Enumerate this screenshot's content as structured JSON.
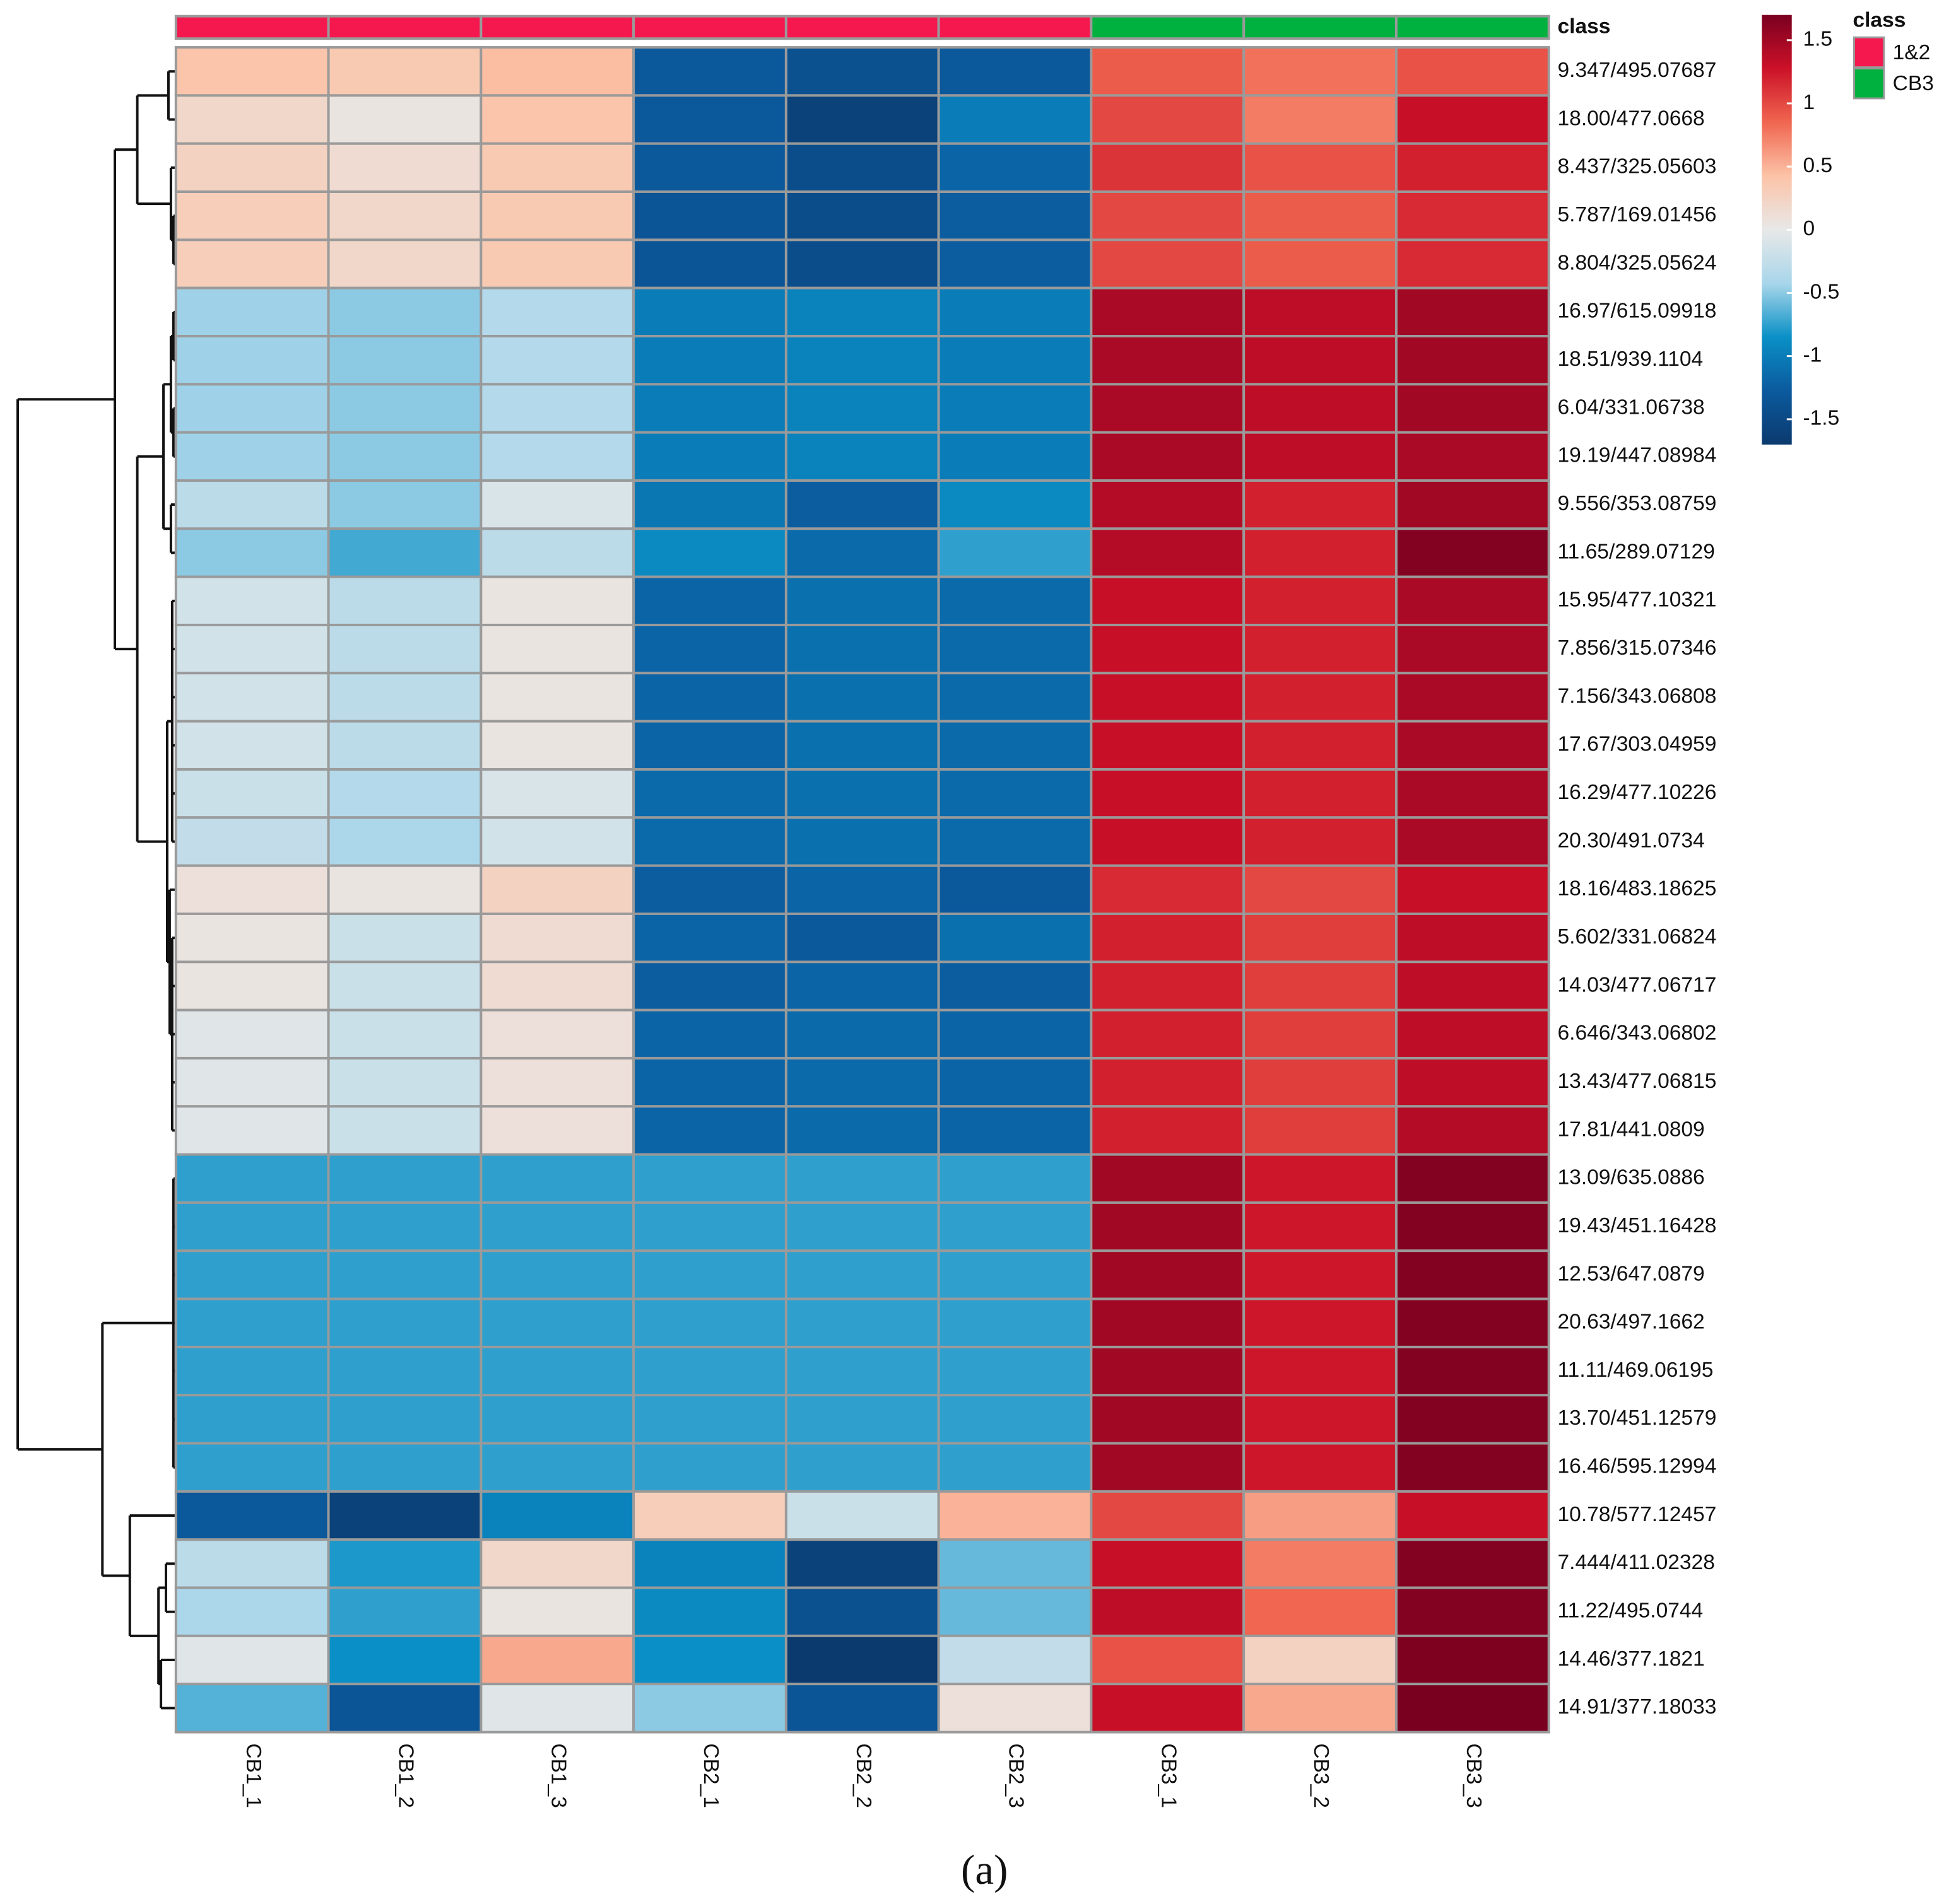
{
  "chart_data": {
    "type": "heatmap",
    "caption": "(a)",
    "class_label": "class",
    "classes": [
      {
        "name": "1&2",
        "color": "#f5184f"
      },
      {
        "name": "CB3",
        "color": "#00b140"
      }
    ],
    "column_classes": [
      "1&2",
      "1&2",
      "1&2",
      "1&2",
      "1&2",
      "1&2",
      "CB3",
      "CB3",
      "CB3"
    ],
    "columns": [
      "CB1_1",
      "CB1_2",
      "CB1_3",
      "CB2_1",
      "CB2_2",
      "CB2_3",
      "CB3_1",
      "CB3_2",
      "CB3_3"
    ],
    "rows": [
      "9.347/495.07687",
      "18.00/477.0668",
      "8.437/325.05603",
      "5.787/169.01456",
      "8.804/325.05624",
      "16.97/615.09918",
      "18.51/939.1104",
      "6.04/331.06738",
      "19.19/447.08984",
      "9.556/353.08759",
      "11.65/289.07129",
      "15.95/477.10321",
      "7.856/315.07346",
      "7.156/343.06808",
      "17.67/303.04959",
      "16.29/477.10226",
      "20.30/491.0734",
      "18.16/483.18625",
      "5.602/331.06824",
      "14.03/477.06717",
      "6.646/343.06802",
      "13.43/477.06815",
      "17.81/441.0809",
      "13.09/635.0886",
      "19.43/451.16428",
      "12.53/647.0879",
      "20.63/497.1662",
      "11.11/469.06195",
      "13.70/451.12579",
      "16.46/595.12994",
      "10.78/577.12457",
      "7.444/411.02328",
      "11.22/495.0744",
      "14.46/377.1821",
      "14.91/377.18033"
    ],
    "values": [
      [
        0.4,
        0.35,
        0.45,
        -1.3,
        -1.4,
        -1.3,
        0.9,
        0.8,
        0.95
      ],
      [
        0.2,
        0.05,
        0.4,
        -1.3,
        -1.6,
        -1.0,
        1.0,
        0.75,
        1.3
      ],
      [
        0.25,
        0.15,
        0.35,
        -1.3,
        -1.45,
        -1.2,
        1.1,
        0.95,
        1.2
      ],
      [
        0.3,
        0.2,
        0.35,
        -1.35,
        -1.45,
        -1.25,
        1.0,
        0.9,
        1.15
      ],
      [
        0.3,
        0.2,
        0.35,
        -1.35,
        -1.45,
        -1.25,
        1.0,
        0.9,
        1.15
      ],
      [
        -0.45,
        -0.5,
        -0.35,
        -1.0,
        -0.95,
        -1.0,
        1.45,
        1.35,
        1.5
      ],
      [
        -0.45,
        -0.5,
        -0.35,
        -1.0,
        -0.95,
        -1.0,
        1.45,
        1.35,
        1.5
      ],
      [
        -0.45,
        -0.5,
        -0.35,
        -1.0,
        -0.95,
        -1.0,
        1.45,
        1.35,
        1.5
      ],
      [
        -0.45,
        -0.5,
        -0.35,
        -1.0,
        -0.95,
        -1.0,
        1.45,
        1.35,
        1.45
      ],
      [
        -0.3,
        -0.5,
        -0.1,
        -1.05,
        -1.25,
        -0.9,
        1.4,
        1.2,
        1.5
      ],
      [
        -0.5,
        -0.7,
        -0.3,
        -0.9,
        -1.15,
        -0.75,
        1.4,
        1.2,
        1.65
      ],
      [
        -0.15,
        -0.3,
        0.05,
        -1.2,
        -1.1,
        -1.15,
        1.3,
        1.2,
        1.45
      ],
      [
        -0.15,
        -0.3,
        0.05,
        -1.2,
        -1.1,
        -1.15,
        1.3,
        1.2,
        1.45
      ],
      [
        -0.15,
        -0.3,
        0.05,
        -1.2,
        -1.1,
        -1.15,
        1.3,
        1.2,
        1.45
      ],
      [
        -0.15,
        -0.3,
        0.05,
        -1.2,
        -1.1,
        -1.15,
        1.3,
        1.2,
        1.45
      ],
      [
        -0.2,
        -0.35,
        -0.1,
        -1.15,
        -1.1,
        -1.15,
        1.3,
        1.2,
        1.45
      ],
      [
        -0.25,
        -0.4,
        -0.15,
        -1.15,
        -1.1,
        -1.15,
        1.3,
        1.2,
        1.45
      ],
      [
        0.1,
        0.05,
        0.25,
        -1.25,
        -1.2,
        -1.3,
        1.15,
        1.0,
        1.3
      ],
      [
        0.05,
        -0.2,
        0.15,
        -1.2,
        -1.3,
        -1.1,
        1.2,
        1.05,
        1.35
      ],
      [
        0.05,
        -0.2,
        0.15,
        -1.25,
        -1.2,
        -1.25,
        1.2,
        1.05,
        1.35
      ],
      [
        -0.05,
        -0.2,
        0.1,
        -1.2,
        -1.15,
        -1.2,
        1.2,
        1.05,
        1.35
      ],
      [
        -0.05,
        -0.2,
        0.1,
        -1.2,
        -1.15,
        -1.2,
        1.2,
        1.05,
        1.35
      ],
      [
        -0.05,
        -0.2,
        0.1,
        -1.2,
        -1.15,
        -1.2,
        1.2,
        1.05,
        1.4
      ],
      [
        -0.75,
        -0.75,
        -0.75,
        -0.75,
        -0.75,
        -0.75,
        1.5,
        1.25,
        1.65
      ],
      [
        -0.75,
        -0.75,
        -0.75,
        -0.75,
        -0.75,
        -0.75,
        1.5,
        1.25,
        1.65
      ],
      [
        -0.75,
        -0.75,
        -0.75,
        -0.75,
        -0.75,
        -0.75,
        1.5,
        1.25,
        1.65
      ],
      [
        -0.75,
        -0.75,
        -0.75,
        -0.75,
        -0.75,
        -0.75,
        1.5,
        1.25,
        1.65
      ],
      [
        -0.75,
        -0.75,
        -0.75,
        -0.75,
        -0.75,
        -0.75,
        1.5,
        1.25,
        1.65
      ],
      [
        -0.75,
        -0.75,
        -0.75,
        -0.75,
        -0.75,
        -0.75,
        1.5,
        1.25,
        1.65
      ],
      [
        -0.75,
        -0.75,
        -0.75,
        -0.75,
        -0.75,
        -0.75,
        1.5,
        1.25,
        1.65
      ],
      [
        -1.3,
        -1.6,
        -0.95,
        0.3,
        -0.2,
        0.5,
        1.0,
        0.6,
        1.3
      ],
      [
        -0.3,
        -0.8,
        0.2,
        -0.95,
        -1.6,
        -0.6,
        1.3,
        0.75,
        1.65
      ],
      [
        -0.4,
        -0.75,
        0.05,
        -0.9,
        -1.4,
        -0.6,
        1.35,
        0.85,
        1.65
      ],
      [
        -0.05,
        -0.85,
        0.55,
        -0.85,
        -1.7,
        -0.25,
        0.95,
        0.25,
        1.68
      ],
      [
        -0.65,
        -1.35,
        -0.05,
        -0.5,
        -1.35,
        0.1,
        1.3,
        0.55,
        1.7
      ]
    ],
    "zlim": [
      -1.7,
      1.7
    ],
    "zticks": [
      -1.5,
      -1,
      -0.5,
      0,
      0.5,
      1,
      1.5
    ],
    "colors": [
      "#0b3a6e",
      "#0b5a9e",
      "#0a90c6",
      "#a8d6ea",
      "#e8e8e8",
      "#fcc3a7",
      "#f06650",
      "#cc1128",
      "#7a0020"
    ]
  }
}
